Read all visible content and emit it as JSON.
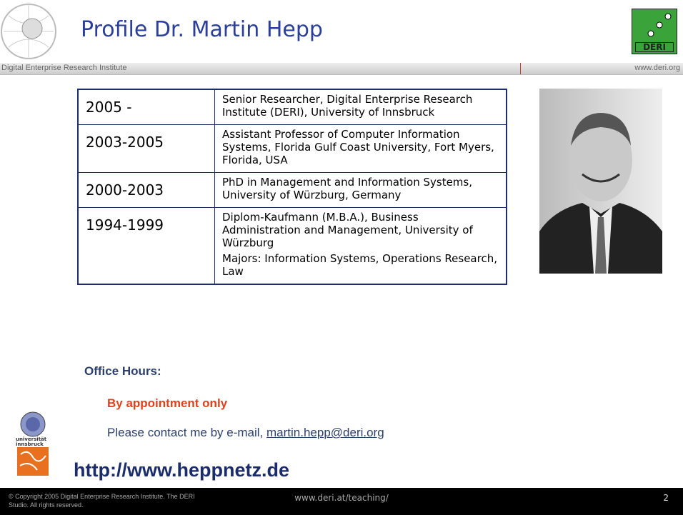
{
  "header": {
    "title": "Profile Dr. Martin Hepp",
    "subtitle": "Digital Enterprise Research Institute",
    "site": "www.deri.org",
    "logo": "DERI"
  },
  "table": {
    "rows": [
      {
        "period": "2005 -",
        "details": [
          "Senior Researcher, Digital Enterprise Research Institute (DERI), University of Innsbruck"
        ]
      },
      {
        "period": "2003-2005",
        "details": [
          "Assistant Professor of Computer Information Systems, Florida Gulf Coast University, Fort Myers, Florida, USA"
        ]
      },
      {
        "period": "2000-2003",
        "details": [
          "PhD in Management and Information Systems, University of Würzburg, Germany"
        ]
      },
      {
        "period": "1994-1999",
        "details": [
          "Diplom-Kaufmann (M.B.A.), Business Administration and Management, University of Würzburg",
          "Majors: Information Systems, Operations Research, Law"
        ]
      }
    ]
  },
  "office": {
    "label": "Office Hours:",
    "note": "By appointment only",
    "contact": "Please contact me by e-mail,",
    "email": "martin.hepp@deri.org"
  },
  "university_logo": "universität innsbruck",
  "homepage": "http://www.heppnetz.de",
  "footer": {
    "copyright": "© Copyright 2005 Digital Enterprise Research Institute. The DERI Studio. All rights reserved.",
    "url": "www.deri.at/teaching/",
    "page": "2"
  }
}
